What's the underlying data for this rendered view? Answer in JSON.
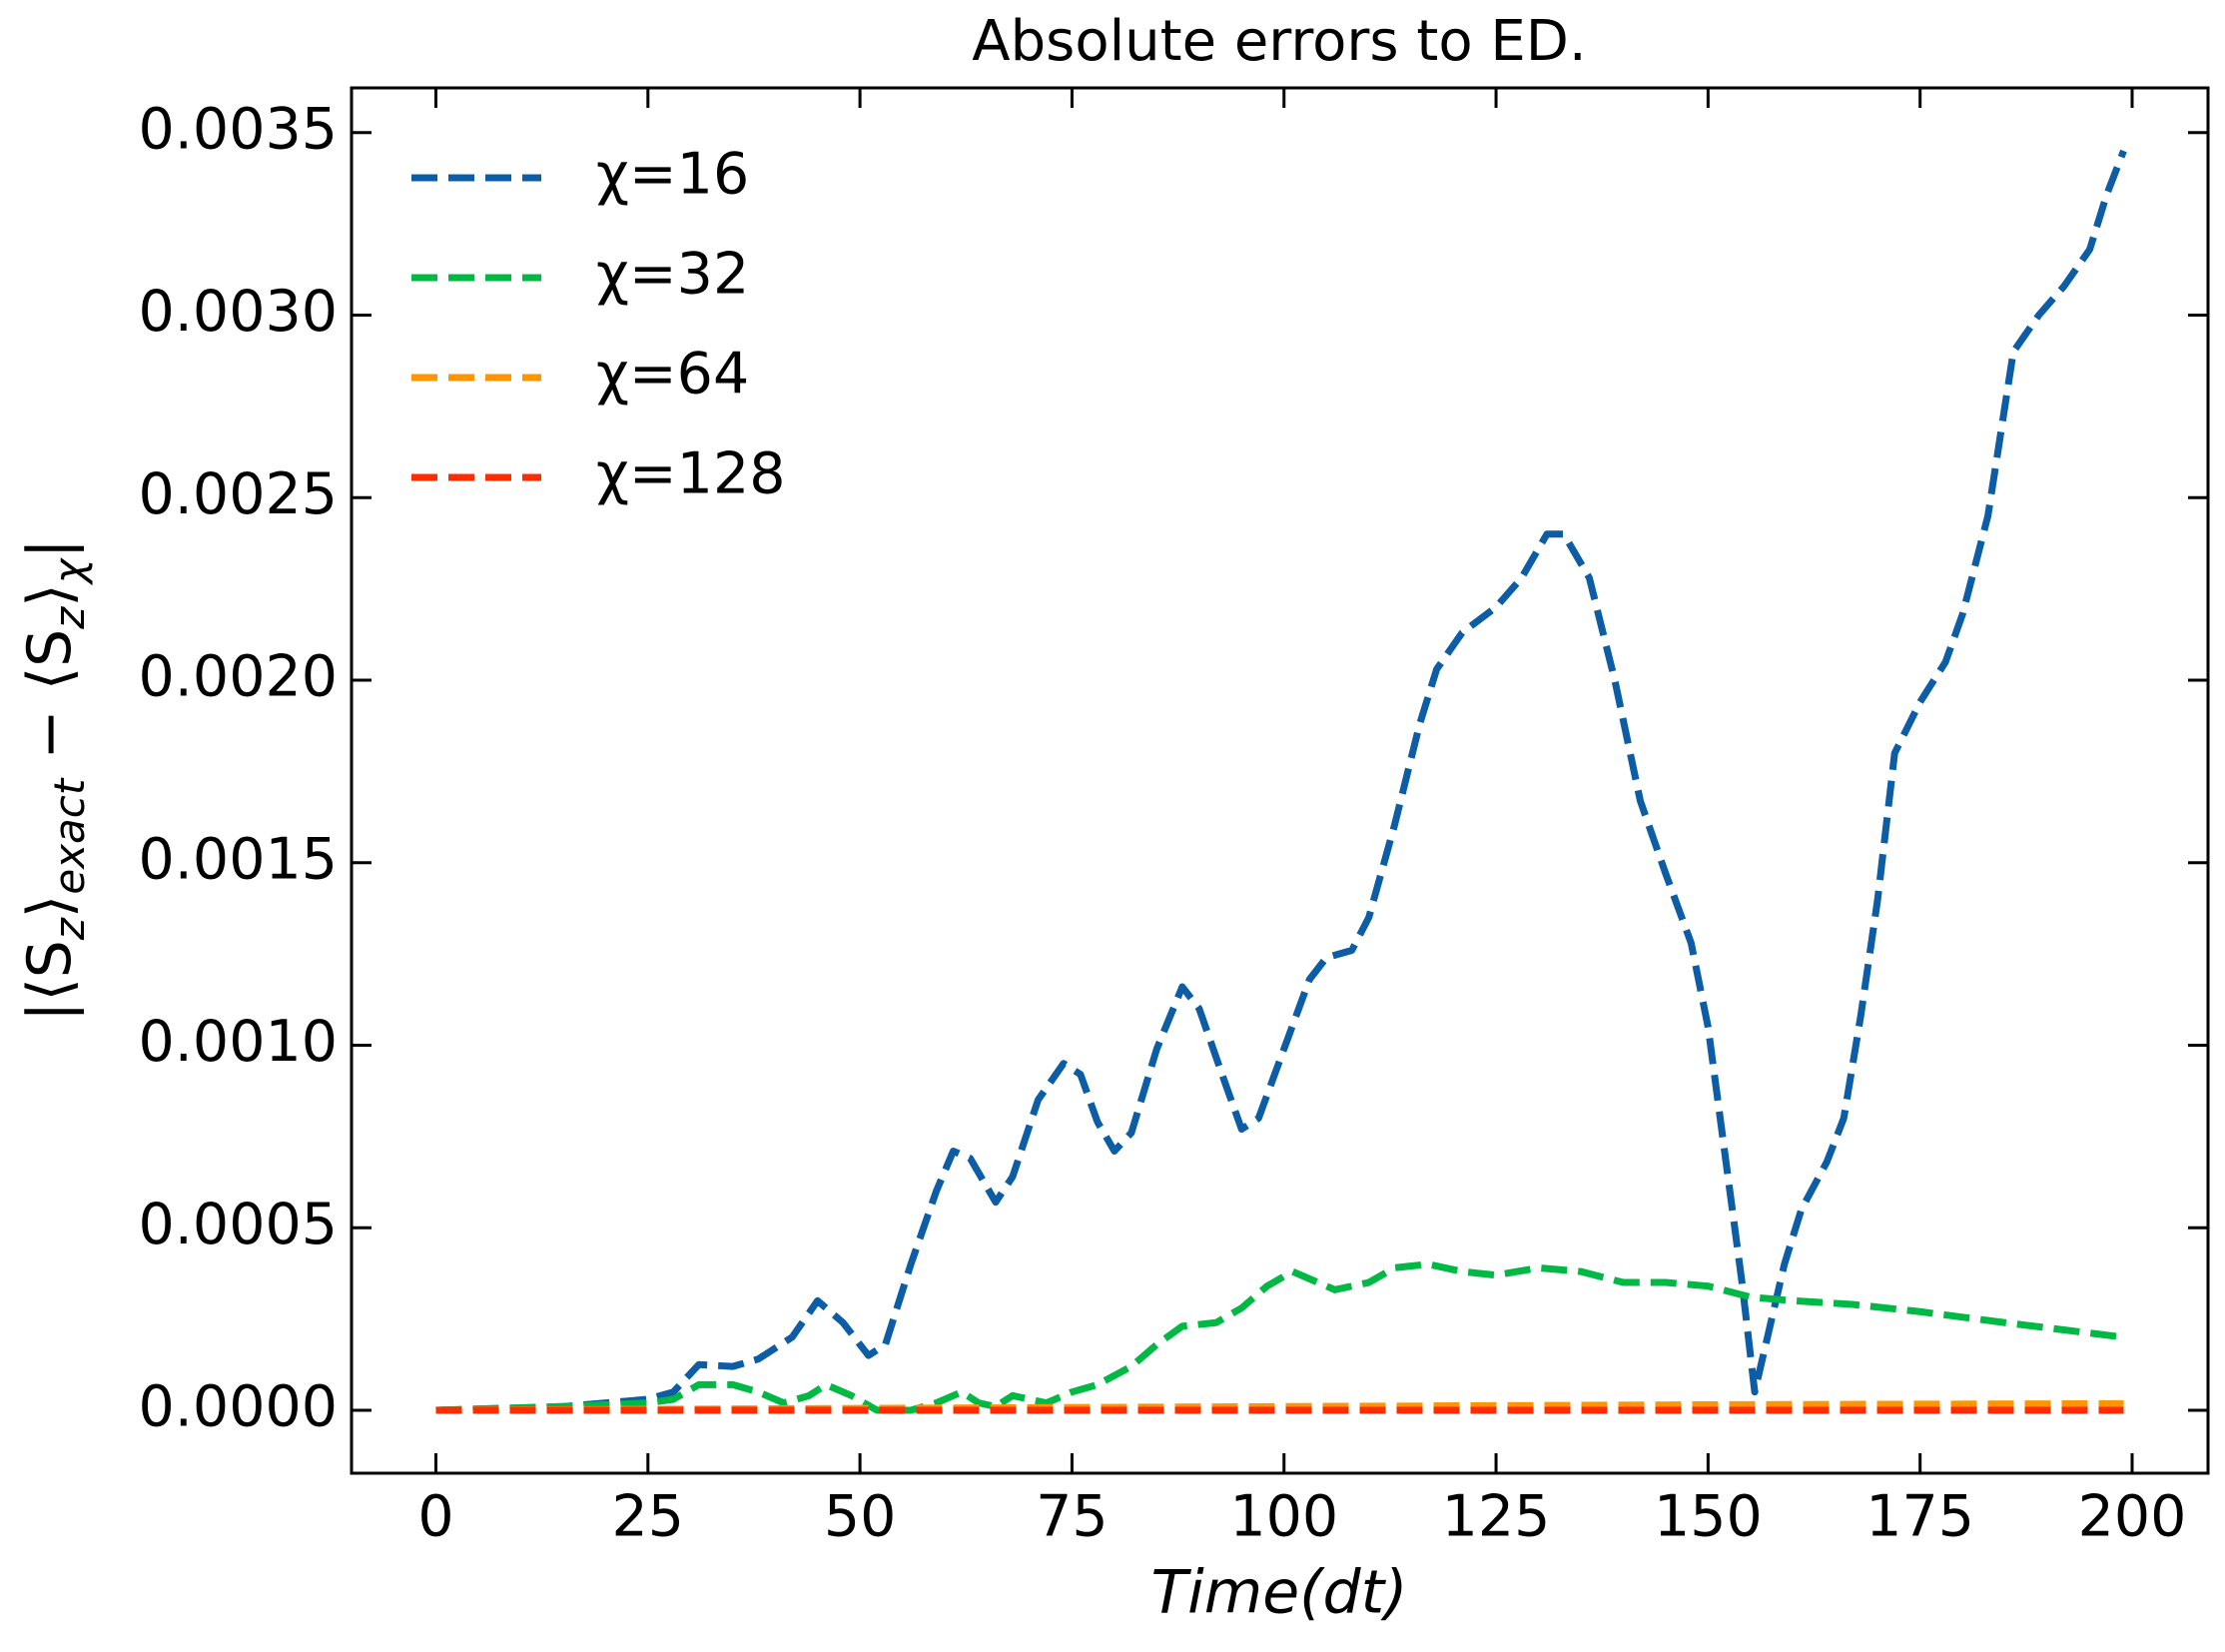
{
  "chart_data": {
    "type": "line",
    "title": "Absolute errors to ED.",
    "xlabel": "Time(dt)",
    "ylabel": [
      "|⟨S",
      "z",
      "⟩",
      "exact",
      " − ⟨S",
      "z",
      "⟩",
      "χ",
      "|"
    ],
    "xlim": [
      -9.95,
      208.95
    ],
    "ylim": [
      -0.0001725,
      0.0036225
    ],
    "xticks": [
      0,
      25,
      50,
      75,
      100,
      125,
      150,
      175,
      200
    ],
    "yticks": [
      {
        "value": 0,
        "label": "0.0000"
      },
      {
        "value": 0.0005,
        "label": "0.0005"
      },
      {
        "value": 0.001,
        "label": "0.0010"
      },
      {
        "value": 0.0015,
        "label": "0.0015"
      },
      {
        "value": 0.002,
        "label": "0.0020"
      },
      {
        "value": 0.0025,
        "label": "0.0025"
      },
      {
        "value": 0.003,
        "label": "0.0030"
      },
      {
        "value": 0.0035,
        "label": "0.0035"
      }
    ],
    "legend": "upper left",
    "series": [
      {
        "name": "χ=16",
        "color": "#0C5DA5",
        "x": [
          0,
          15,
          25,
          28,
          31,
          35,
          38,
          42,
          45,
          48,
          51,
          53,
          56,
          59,
          61,
          63,
          66,
          68,
          71,
          74,
          76,
          78,
          80,
          82,
          85,
          88,
          90,
          93,
          95,
          97,
          100,
          103,
          105,
          108,
          110,
          113,
          116,
          118,
          121,
          125,
          128,
          131,
          133,
          136,
          139,
          142,
          145,
          148,
          150,
          152,
          154,
          155.5,
          157,
          159,
          161,
          164,
          166,
          168,
          170,
          172,
          175,
          178,
          180,
          183,
          186,
          189,
          192,
          195,
          197,
          199
        ],
        "values": [
          0,
          1e-05,
          3e-05,
          5e-05,
          0.000125,
          0.00012,
          0.00014,
          0.0002,
          0.0003,
          0.00024,
          0.00015,
          0.00018,
          0.0004,
          0.0006,
          0.00071,
          0.00069,
          0.00057,
          0.00064,
          0.00085,
          0.00095,
          0.00092,
          0.00079,
          0.00071,
          0.00076,
          0.00099,
          0.00116,
          0.0011,
          0.0009,
          0.00077,
          0.0008,
          0.00099,
          0.00118,
          0.00124,
          0.00126,
          0.00135,
          0.0016,
          0.00188,
          0.00203,
          0.00213,
          0.0022,
          0.00228,
          0.0024,
          0.0024,
          0.00228,
          0.002,
          0.00167,
          0.00147,
          0.00128,
          0.00105,
          0.0007,
          0.00035,
          5e-05,
          0.0002,
          0.0004,
          0.00055,
          0.00068,
          0.0008,
          0.00108,
          0.0014,
          0.0018,
          0.00194,
          0.00205,
          0.00218,
          0.00245,
          0.0029,
          0.003,
          0.00308,
          0.00318,
          0.00333,
          0.00345
        ]
      },
      {
        "name": "χ=32",
        "color": "#00B945",
        "x": [
          0,
          15,
          25,
          28,
          31,
          35,
          38,
          41,
          44,
          46,
          49,
          52,
          56,
          59,
          62,
          64,
          66,
          68,
          70,
          72,
          75,
          78,
          82,
          85,
          88,
          92,
          95,
          98,
          101,
          103,
          106,
          110,
          113,
          117,
          121,
          125,
          130,
          135,
          140,
          145,
          150,
          155,
          160,
          167,
          175,
          185,
          199
        ],
        "values": [
          0,
          1e-05,
          2e-05,
          3e-05,
          7e-05,
          7e-05,
          5e-05,
          2e-05,
          4e-05,
          7e-05,
          4e-05,
          0,
          0,
          2e-05,
          5e-05,
          2e-05,
          1e-05,
          4e-05,
          3e-05,
          2e-05,
          5e-05,
          7e-05,
          0.00012,
          0.00018,
          0.00023,
          0.00024,
          0.00028,
          0.00034,
          0.00038,
          0.00036,
          0.00033,
          0.00035,
          0.00039,
          0.0004,
          0.00038,
          0.00037,
          0.00039,
          0.00038,
          0.00035,
          0.00035,
          0.00034,
          0.00031,
          0.0003,
          0.00029,
          0.00027,
          0.00024,
          0.0002
        ]
      },
      {
        "name": "χ=64",
        "color": "#FF9500",
        "x": [
          0,
          50,
          100,
          150,
          199
        ],
        "values": [
          0,
          5e-06,
          1e-05,
          1.5e-05,
          1.8e-05
        ]
      },
      {
        "name": "χ=128",
        "color": "#FF2C00",
        "x": [
          0,
          50,
          100,
          150,
          199
        ],
        "values": [
          0,
          0,
          0,
          0,
          0
        ]
      }
    ]
  }
}
